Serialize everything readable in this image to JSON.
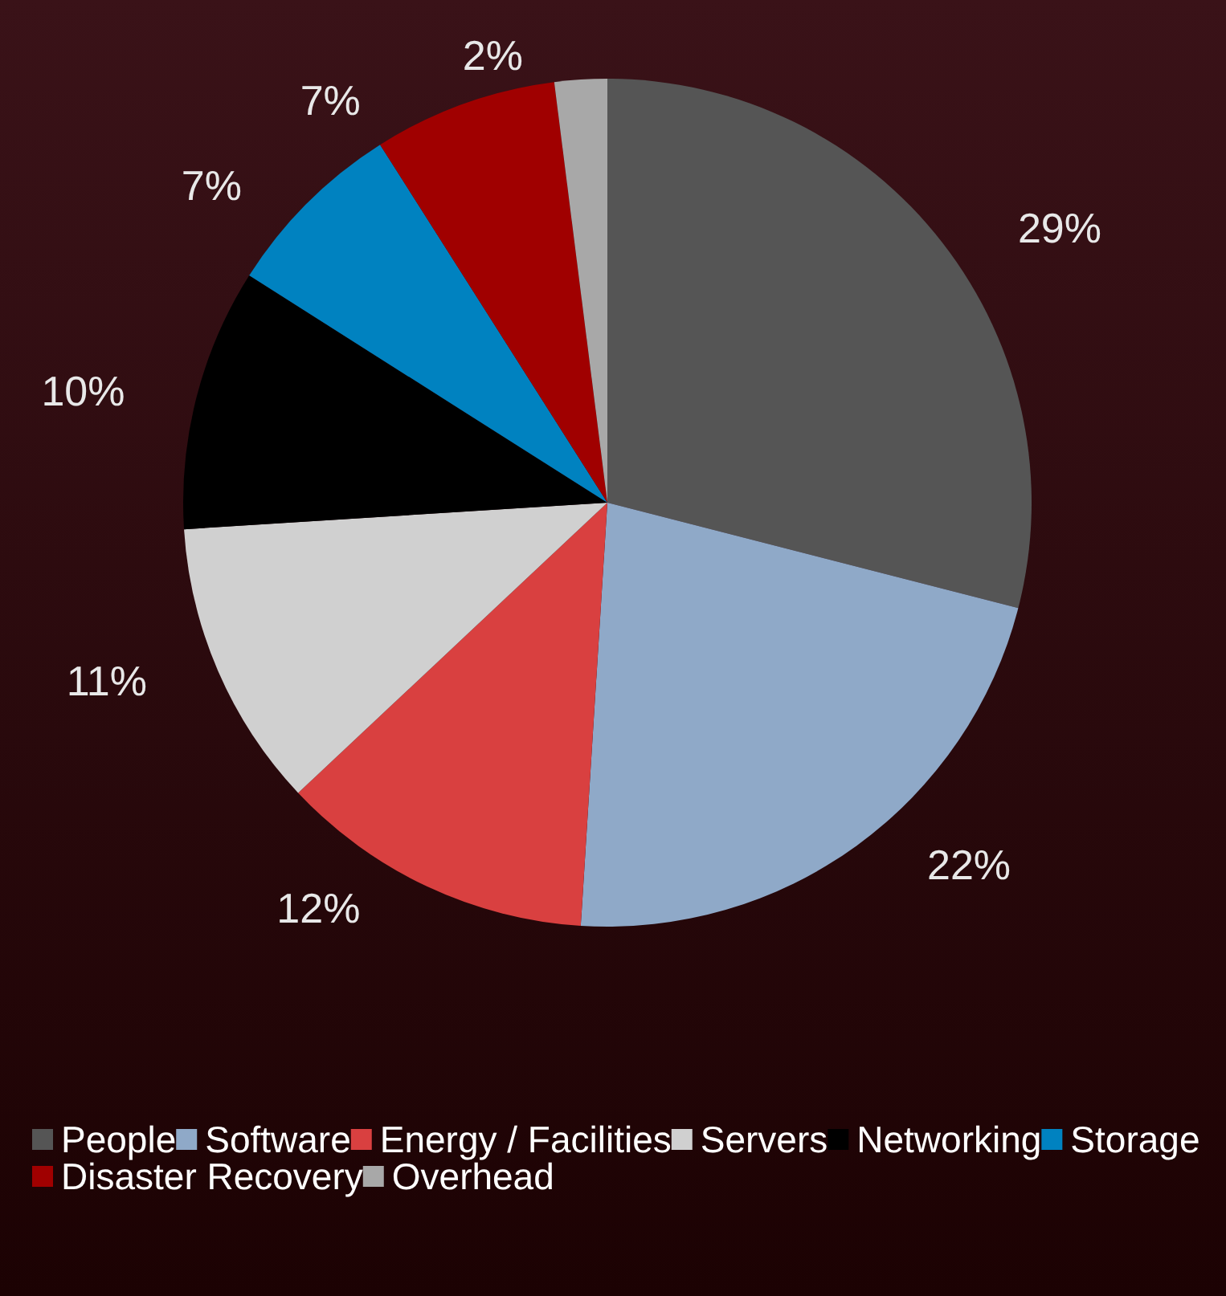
{
  "chart_data": {
    "type": "pie",
    "categories": [
      "People",
      "Software",
      "Energy / Facilities",
      "Servers",
      "Networking",
      "Storage",
      "Disaster Recovery",
      "Overhead"
    ],
    "values": [
      29,
      22,
      12,
      11,
      10,
      7,
      7,
      2
    ],
    "value_labels": [
      "29%",
      "22%",
      "12%",
      "11%",
      "10%",
      "7%",
      "7%",
      "2%"
    ],
    "colors": [
      "#555555",
      "#8fa9c8",
      "#d94040",
      "#d0d0d0",
      "#000000",
      "#0082c0",
      "#a00000",
      "#a8a8a8"
    ],
    "legend": "bottom"
  }
}
